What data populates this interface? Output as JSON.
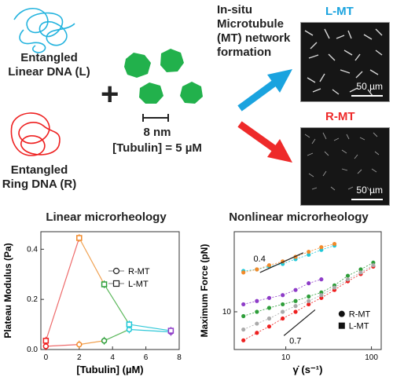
{
  "top": {
    "linear_dna_label": "Entangled\nLinear DNA (L)",
    "ring_dna_label": "Entangled\nRing DNA (R)",
    "plus": "+",
    "size_label": "8 nm",
    "tubulin_label": "[Tubulin] = 5 µM",
    "insitu_label": "In-situ\nMicrotubule\n(MT) network\nformation",
    "lmt_label": "L-MT",
    "rmt_label": "R-MT",
    "scale1": "50 µm",
    "scale2": "50 µm",
    "colors": {
      "linear": "#22b3de",
      "ring": "#ee2020",
      "tubulin": "#22b14c",
      "lmt": "#1aa3df",
      "rmt": "#ee2a2a"
    }
  },
  "chart_data": [
    {
      "type": "line",
      "title": "Linear microrheology",
      "xlabel": "[Tubulin] (µM)",
      "ylabel": "Plateau Modulus (Pa)",
      "xlim": [
        -0.3,
        8
      ],
      "ylim": [
        0,
        0.47
      ],
      "xticks": [
        "0",
        "2",
        "4",
        "6",
        "8"
      ],
      "yticks": [
        "0.0",
        "0.2",
        "0.4"
      ],
      "legend_position": "center-right",
      "series": [
        {
          "name": "R-MT",
          "marker": "circle",
          "x": [
            0,
            2,
            3.5,
            5,
            7.5
          ],
          "y": [
            0.013,
            0.02,
            0.035,
            0.08,
            0.07
          ],
          "colors": [
            "#ee2020",
            "#f28a2a",
            "#2e9e3a",
            "#1fc8d8",
            "#8e3cc8"
          ]
        },
        {
          "name": "L-MT",
          "marker": "square",
          "x": [
            0,
            2,
            3.5,
            5,
            7.5
          ],
          "y": [
            0.035,
            0.445,
            0.26,
            0.1,
            0.075
          ],
          "colors": [
            "#ee2020",
            "#f28a2a",
            "#2e9e3a",
            "#1fc8d8",
            "#8e3cc8"
          ]
        }
      ]
    },
    {
      "type": "scatter",
      "title": "Nonlinear microrheology",
      "xlabel": "γ̇ (s⁻¹)",
      "ylabel": "Maximum Force (pN)",
      "xscale": "log",
      "yscale": "log",
      "xlim": [
        2.5,
        130
      ],
      "ylim": [
        4,
        70
      ],
      "xticks": [
        "10",
        "100"
      ],
      "yticks": [
        "10"
      ],
      "slope_labels": [
        "0.4",
        "0.7"
      ],
      "legend_position": "lower-right",
      "legend": [
        {
          "name": "R-MT",
          "marker": "circle"
        },
        {
          "name": "L-MT",
          "marker": "square"
        }
      ],
      "x": [
        3.2,
        4.6,
        6.4,
        9.2,
        13,
        18.5,
        26,
        37,
        53,
        75,
        105
      ],
      "series": [
        {
          "color": "#1fc8d8",
          "y": [
            27,
            28,
            30,
            32,
            36,
            40,
            45,
            50
          ]
        },
        {
          "color": "#f28a2a",
          "y": [
            26,
            28,
            31,
            34,
            38,
            43,
            48,
            52
          ]
        },
        {
          "color": "#8e3cc8",
          "y": [
            12,
            13,
            14,
            15,
            17,
            20,
            22
          ]
        },
        {
          "color": "#2e9e3a",
          "y": [
            9,
            10,
            11,
            12,
            13,
            14.5,
            16,
            19,
            24,
            28,
            33
          ]
        },
        {
          "color": "#ee2020",
          "y": [
            5,
            6,
            7,
            8.5,
            10,
            12,
            14,
            17,
            21,
            25,
            30
          ]
        },
        {
          "color": "#aaaaaa",
          "y": [
            6.5,
            7.5,
            8.5,
            10,
            11.5,
            13,
            15,
            18,
            22,
            26,
            31
          ]
        }
      ]
    }
  ]
}
